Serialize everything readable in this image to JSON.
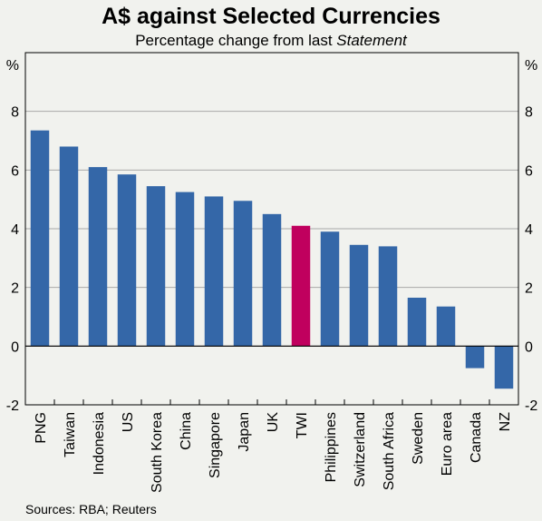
{
  "chart_data": {
    "type": "bar",
    "title": "A$ against Selected Currencies",
    "subtitle_main": "Percentage change from last ",
    "subtitle_italic": "Statement",
    "unit_left": "%",
    "unit_right": "%",
    "categories": [
      "PNG",
      "Taiwan",
      "Indonesia",
      "US",
      "South Korea",
      "China",
      "Singapore",
      "Japan",
      "UK",
      "TWI",
      "Philippines",
      "Switzerland",
      "South Africa",
      "Sweden",
      "Euro area",
      "Canada",
      "NZ"
    ],
    "values": [
      7.35,
      6.8,
      6.1,
      5.85,
      5.45,
      5.25,
      5.1,
      4.95,
      4.5,
      4.1,
      3.9,
      3.45,
      3.4,
      1.65,
      1.35,
      -0.75,
      -1.45
    ],
    "highlight_category": "TWI",
    "ylim": [
      -2,
      10
    ],
    "yticks": [
      -2,
      0,
      2,
      4,
      6,
      8
    ],
    "ytick_labels": [
      "-2",
      "0",
      "2",
      "4",
      "6",
      "8"
    ],
    "grid": true,
    "colors": {
      "bar": "#3467a8",
      "highlight": "#c0005e",
      "grid": "#a8a8a8",
      "background": "#f1f2ee",
      "axis": "#000000"
    },
    "source": "Sources: RBA; Reuters"
  }
}
